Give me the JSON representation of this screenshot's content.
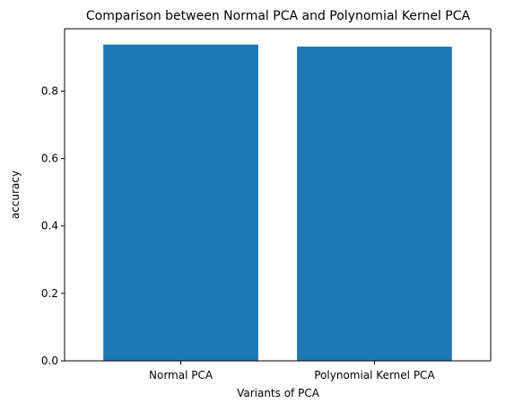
{
  "chart_data": {
    "type": "bar",
    "title": "Comparison between Normal PCA and Polynomial Kernel PCA",
    "xlabel": "Variants of PCA",
    "ylabel": "accuracy",
    "categories": [
      "Normal PCA",
      "Polynomial Kernel PCA"
    ],
    "values": [
      0.938,
      0.932
    ],
    "ylim": [
      0,
      0.985
    ],
    "yticks": [
      0.0,
      0.2,
      0.4,
      0.6,
      0.8
    ],
    "ytick_labels": [
      "0.0",
      "0.2",
      "0.4",
      "0.6",
      "0.8"
    ],
    "grid": false,
    "legend": "none",
    "bar_color": "#1f77b4"
  }
}
